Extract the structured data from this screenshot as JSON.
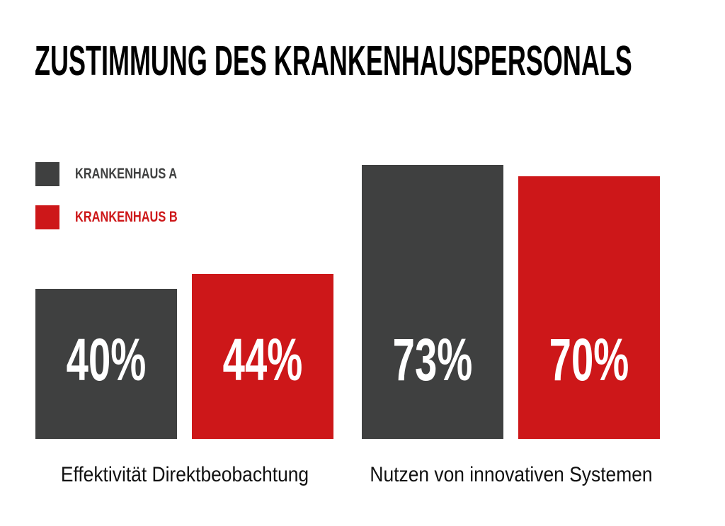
{
  "title": "ZUSTIMMUNG DES KRANKENHAUSPERSONALS",
  "colors": {
    "background": "#ffffff",
    "title": "#000000",
    "hospital_a": "#3f4040",
    "hospital_b": "#cd1719",
    "value_label": "#ffffff",
    "category_label": "#111111"
  },
  "legend": {
    "items": [
      {
        "label": "KRANKENHAUS A",
        "color": "#3f4040"
      },
      {
        "label": "KRANKENHAUS B",
        "color": "#cd1719"
      }
    ]
  },
  "chart_data": {
    "type": "bar",
    "title": "ZUSTIMMUNG DES KRANKENHAUSPERSONALS",
    "categories": [
      "Effektivität Direktbeobachtung",
      "Nutzen von innovativen Systemen"
    ],
    "series": [
      {
        "name": "KRANKENHAUS A",
        "color": "#3f4040",
        "values": [
          40,
          73
        ]
      },
      {
        "name": "KRANKENHAUS B",
        "color": "#cd1719",
        "values": [
          44,
          70
        ]
      }
    ],
    "value_labels": [
      [
        "40%",
        "73%"
      ],
      [
        "44%",
        "70%"
      ]
    ],
    "unit": "%",
    "ylim": [
      0,
      100
    ],
    "grid": false,
    "axes_visible": false,
    "legend_position": "top-left",
    "bar_value_labels_inside": true
  }
}
